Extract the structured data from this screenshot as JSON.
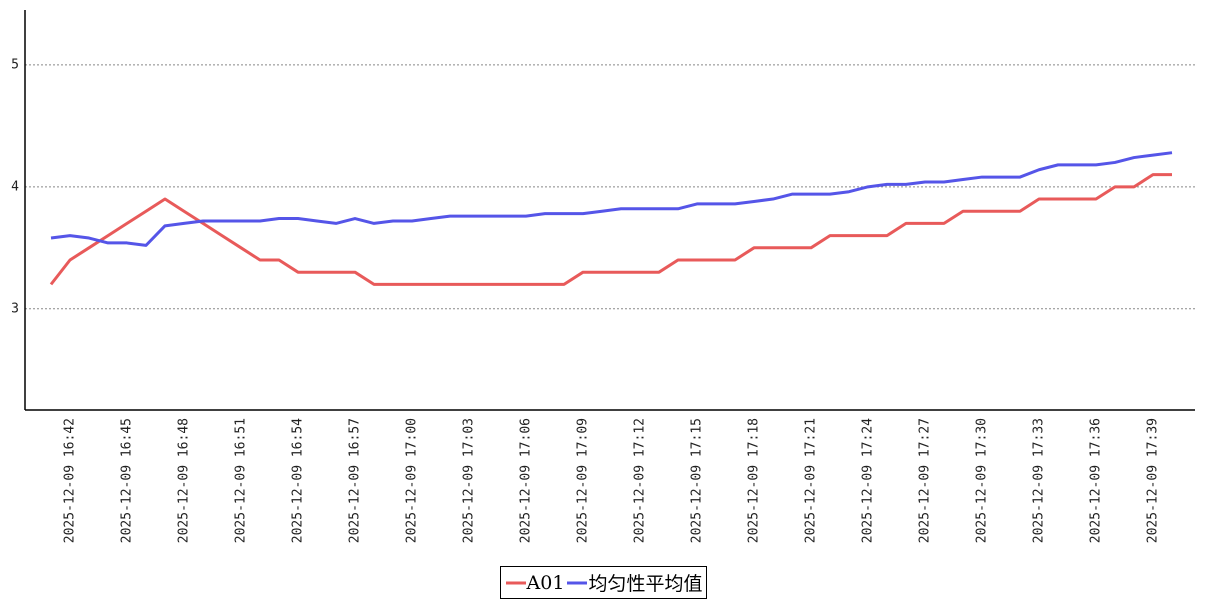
{
  "chart_data": {
    "type": "line",
    "categories": [
      null,
      "2025-12-09 16:42",
      null,
      null,
      "2025-12-09 16:45",
      null,
      null,
      "2025-12-09 16:48",
      null,
      null,
      "2025-12-09 16:51",
      null,
      null,
      "2025-12-09 16:54",
      null,
      null,
      "2025-12-09 16:57",
      null,
      null,
      "2025-12-09 17:00",
      null,
      null,
      "2025-12-09 17:03",
      null,
      null,
      "2025-12-09 17:06",
      null,
      null,
      "2025-12-09 17:09",
      null,
      null,
      "2025-12-09 17:12",
      null,
      null,
      "2025-12-09 17:15",
      null,
      null,
      "2025-12-09 17:18",
      null,
      null,
      "2025-12-09 17:21",
      null,
      null,
      "2025-12-09 17:24",
      null,
      null,
      "2025-12-09 17:27",
      null,
      null,
      "2025-12-09 17:30",
      null,
      null,
      "2025-12-09 17:33",
      null,
      null,
      "2025-12-09 17:36",
      null,
      null,
      "2025-12-09 17:39",
      null
    ],
    "series": [
      {
        "name": "A01",
        "color": "#e85a5a",
        "values": [
          3.2,
          3.4,
          3.5,
          3.6,
          3.7,
          3.8,
          3.9,
          3.8,
          3.7,
          3.6,
          3.5,
          3.4,
          3.4,
          3.3,
          3.3,
          3.3,
          3.3,
          3.2,
          3.2,
          3.2,
          3.2,
          3.2,
          3.2,
          3.2,
          3.2,
          3.2,
          3.2,
          3.2,
          3.3,
          3.3,
          3.3,
          3.3,
          3.3,
          3.4,
          3.4,
          3.4,
          3.4,
          3.5,
          3.5,
          3.5,
          3.5,
          3.6,
          3.6,
          3.6,
          3.6,
          3.7,
          3.7,
          3.7,
          3.8,
          3.8,
          3.8,
          3.8,
          3.9,
          3.9,
          3.9,
          3.9,
          4.0,
          4.0,
          4.1,
          4.1
        ]
      },
      {
        "name": "均匀性平均值",
        "color": "#5555e8",
        "values": [
          3.58,
          3.6,
          3.58,
          3.54,
          3.54,
          3.52,
          3.68,
          3.7,
          3.72,
          3.72,
          3.72,
          3.72,
          3.74,
          3.74,
          3.72,
          3.7,
          3.74,
          3.7,
          3.72,
          3.72,
          3.74,
          3.76,
          3.76,
          3.76,
          3.76,
          3.76,
          3.78,
          3.78,
          3.78,
          3.8,
          3.82,
          3.82,
          3.82,
          3.82,
          3.86,
          3.86,
          3.86,
          3.88,
          3.9,
          3.94,
          3.94,
          3.94,
          3.96,
          4.0,
          4.02,
          4.02,
          4.04,
          4.04,
          4.06,
          4.08,
          4.08,
          4.08,
          4.14,
          4.18,
          4.18,
          4.18,
          4.2,
          4.24,
          4.26,
          4.28
        ]
      }
    ],
    "ylim": [
      2.17,
      5.45
    ],
    "yticks": [
      3,
      4,
      5
    ],
    "grid": true
  }
}
